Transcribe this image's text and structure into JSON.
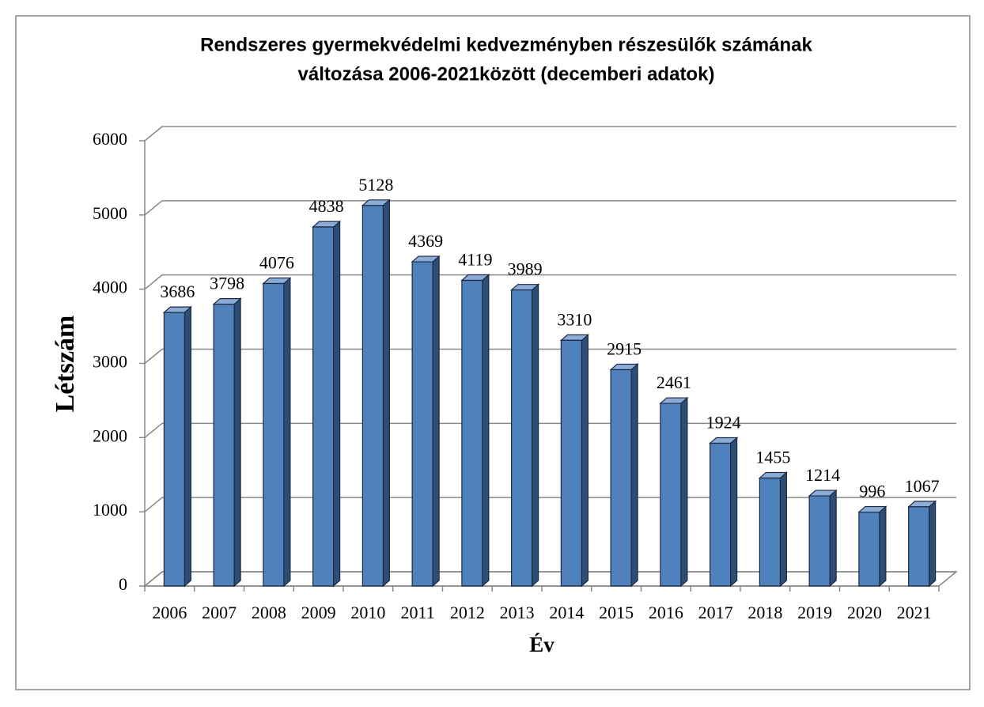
{
  "chart_data": {
    "type": "bar3d",
    "title": [
      "Rendszeres gyermekvédelmi kedvezményben részesülők számának",
      "változása 2006-2021között (decemberi adatok)"
    ],
    "x_label": "Év",
    "y_label": "Létszám",
    "categories": [
      "2006",
      "2007",
      "2008",
      "2009",
      "2010",
      "2011",
      "2012",
      "2013",
      "2014",
      "2015",
      "2016",
      "2017",
      "2018",
      "2019",
      "2020",
      "2021"
    ],
    "values": [
      3686,
      3798,
      4076,
      4838,
      5128,
      4369,
      4119,
      3989,
      3310,
      2915,
      2461,
      1924,
      1455,
      1214,
      996,
      1067
    ],
    "color": "#4f81bd",
    "ylim": [
      0,
      6000
    ],
    "yticks": [
      0,
      1000,
      2000,
      3000,
      4000,
      5000,
      6000
    ],
    "grid": true
  }
}
